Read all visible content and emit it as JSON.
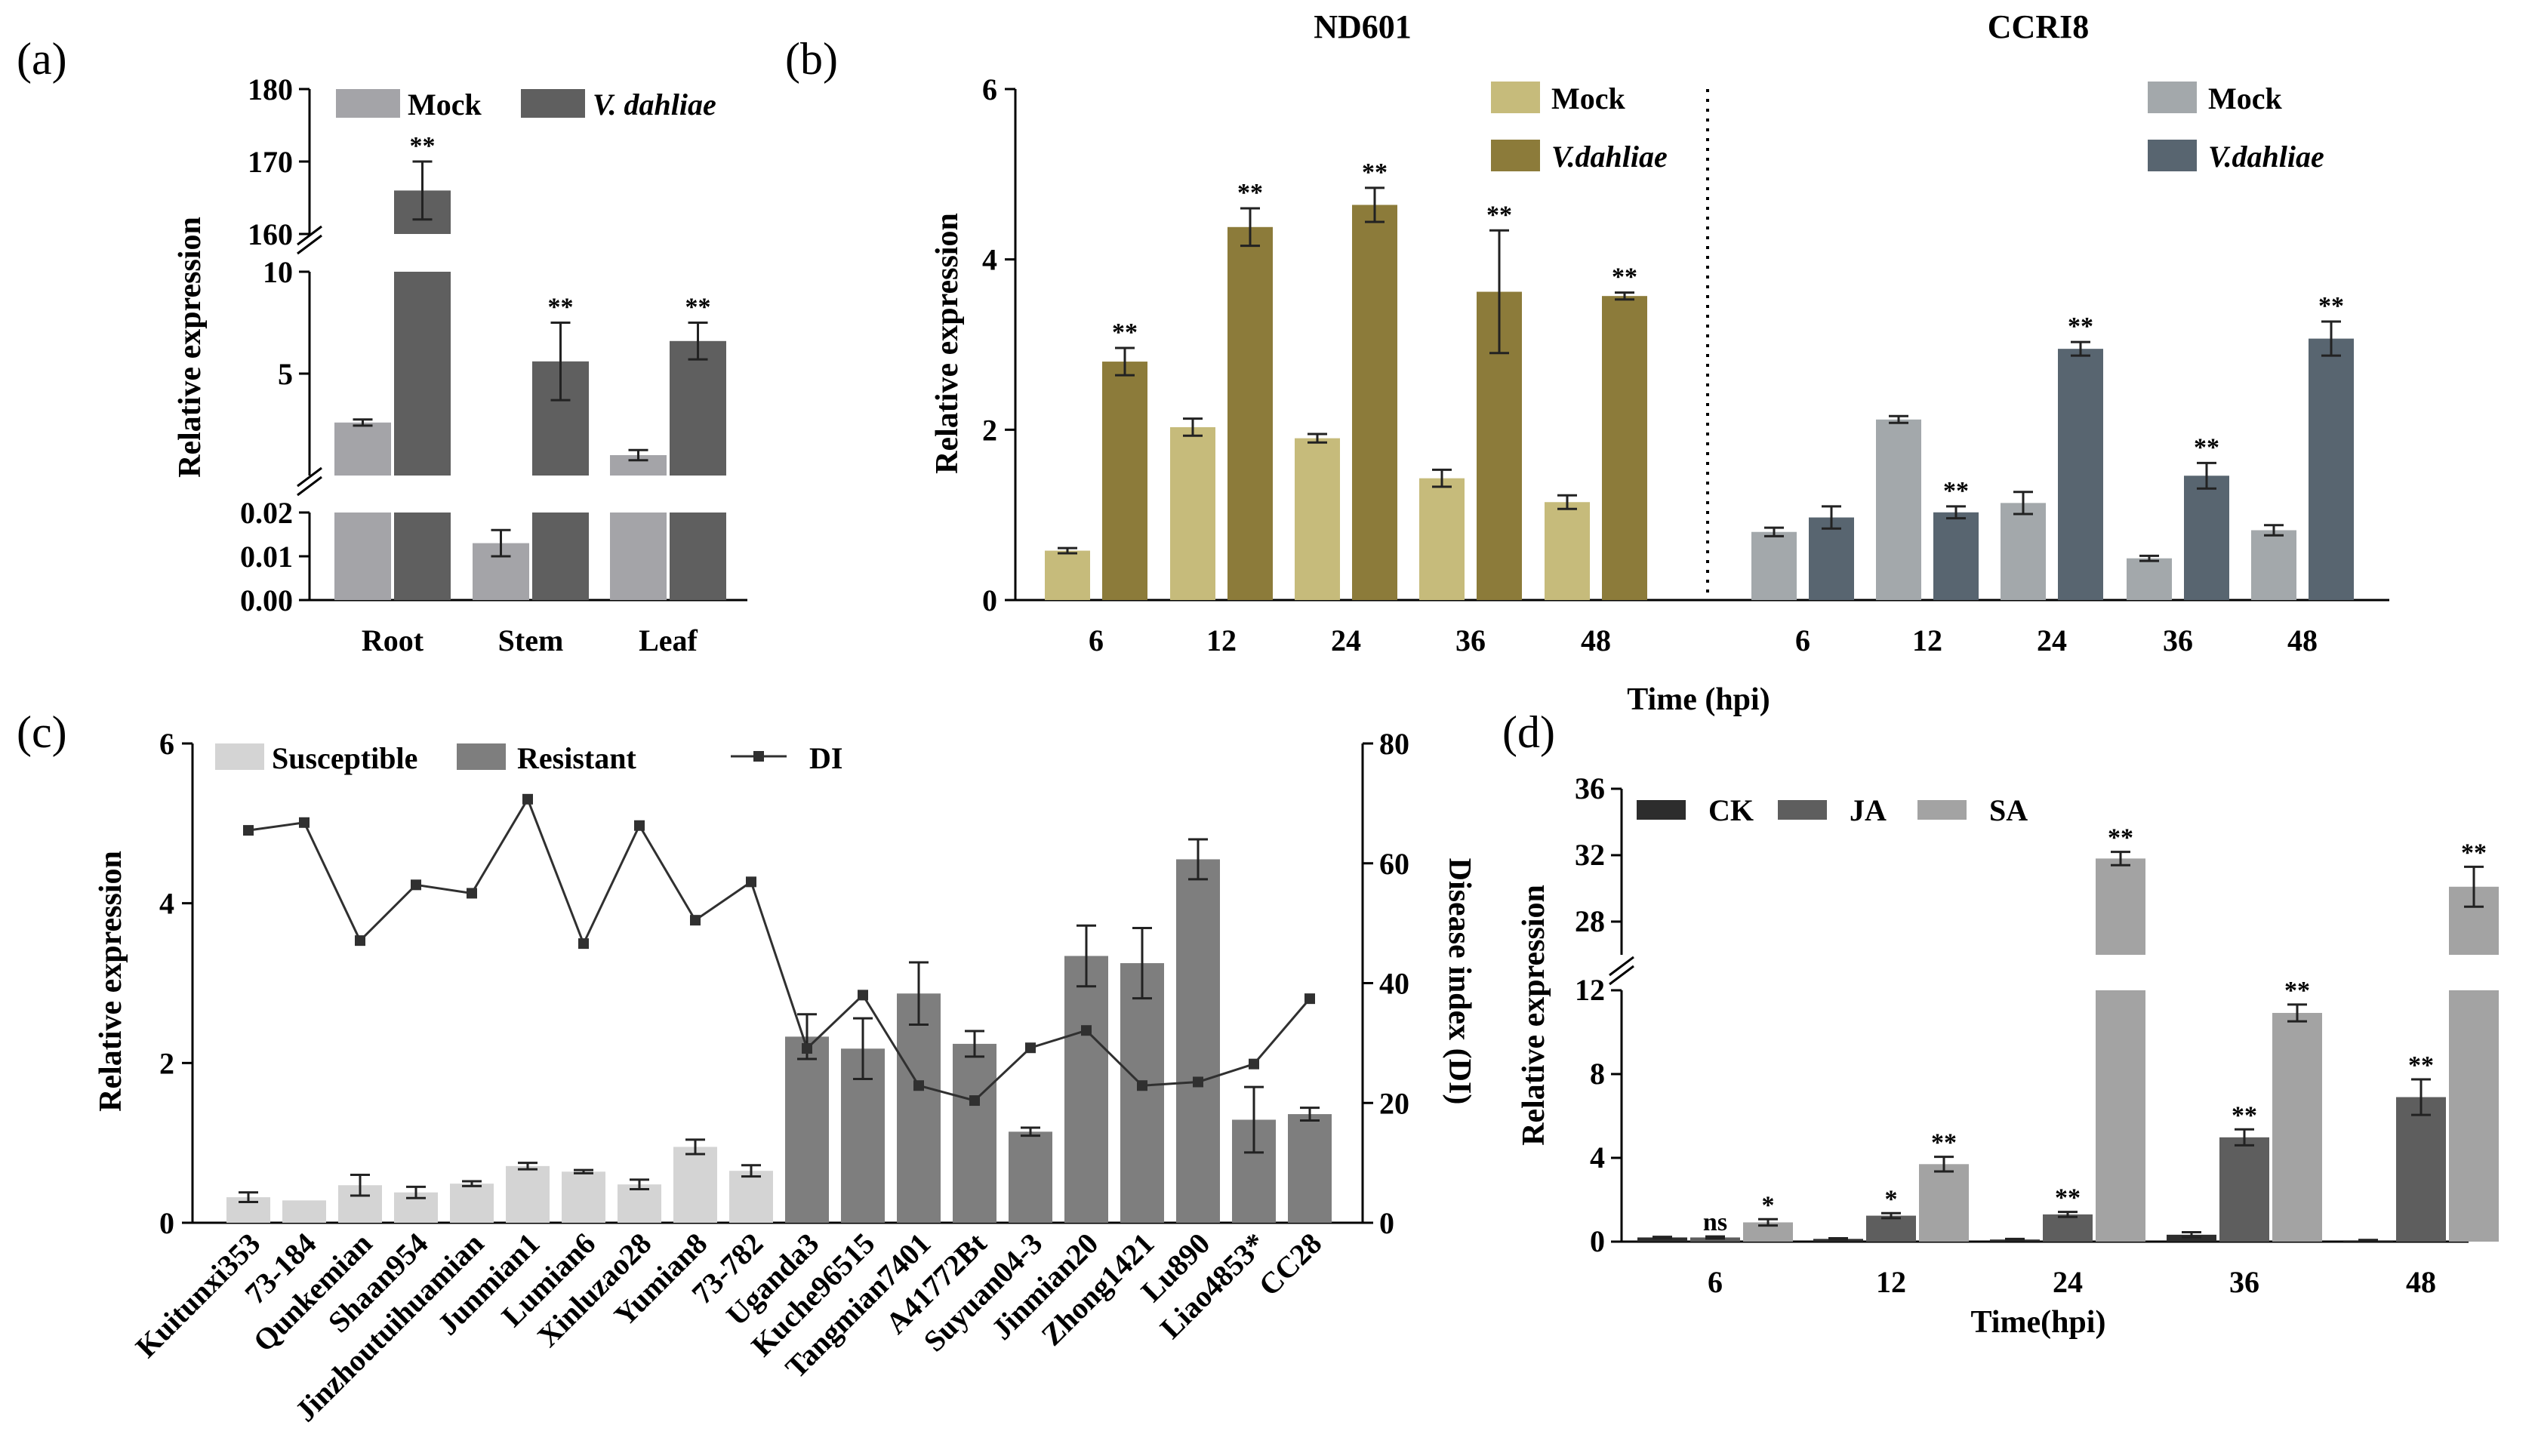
{
  "chart_data": [
    {
      "panel": "(a)",
      "type": "bar",
      "ylabel": "Relative expression",
      "categories": [
        "Root",
        "Stem",
        "Leaf"
      ],
      "y_segments": [
        {
          "range": [
            0,
            0.02
          ],
          "ticks": [
            "0.00",
            "0.01",
            "0.02"
          ]
        },
        {
          "range": [
            0,
            10
          ],
          "ticks": [
            "5",
            "10"
          ]
        },
        {
          "range": [
            160,
            180
          ],
          "ticks": [
            "160",
            "170",
            "180"
          ]
        }
      ],
      "legend": [
        {
          "name": "Mock",
          "italic": false
        },
        {
          "name": "V. dahliae",
          "italic": true
        }
      ],
      "colors": {
        "Mock": "#a4a4a8",
        "V. dahliae": "#5f5f5f"
      },
      "series": [
        {
          "name": "Mock",
          "values": [
            2.6,
            0.013,
            1.0
          ],
          "errors": [
            0.15,
            0.003,
            0.25
          ],
          "sig": [
            "",
            "",
            ""
          ]
        },
        {
          "name": "V. dahliae",
          "values": [
            166,
            5.6,
            6.6
          ],
          "errors": [
            4,
            1.9,
            0.9
          ],
          "sig": [
            "**",
            "**",
            "**"
          ]
        }
      ]
    },
    {
      "panel": "(b)",
      "type": "bar",
      "ylabel": "Relative expression",
      "xlabel": "Time (hpi)",
      "ylim": [
        0,
        6
      ],
      "yticks": [
        "0",
        "2",
        "4",
        "6"
      ],
      "groups": [
        {
          "title": "ND601",
          "categories": [
            "6",
            "12",
            "24",
            "36",
            "48"
          ],
          "legend": [
            "Mock",
            "V.dahliae"
          ],
          "colors": {
            "Mock": "#c6bb7b",
            "V.dahliae": "#8c7b3a"
          },
          "series": [
            {
              "name": "Mock",
              "values": [
                0.58,
                2.03,
                1.9,
                1.43,
                1.15
              ],
              "errors": [
                0.03,
                0.1,
                0.05,
                0.1,
                0.08
              ],
              "sig": [
                "",
                "",
                "",
                "",
                ""
              ]
            },
            {
              "name": "V.dahliae",
              "values": [
                2.8,
                4.38,
                4.64,
                3.62,
                3.57
              ],
              "errors": [
                0.16,
                0.22,
                0.2,
                0.72,
                0.04
              ],
              "sig": [
                "**",
                "**",
                "**",
                "**",
                "**"
              ]
            }
          ]
        },
        {
          "title": "CCRI8",
          "categories": [
            "6",
            "12",
            "24",
            "36",
            "48"
          ],
          "legend": [
            "Mock",
            "V.dahliae"
          ],
          "colors": {
            "Mock": "#a3a8ab",
            "V.dahliae": "#586570"
          },
          "series": [
            {
              "name": "Mock",
              "values": [
                0.8,
                2.12,
                1.14,
                0.49,
                0.82
              ],
              "errors": [
                0.05,
                0.04,
                0.13,
                0.03,
                0.06
              ],
              "sig": [
                "",
                "",
                "",
                "",
                ""
              ]
            },
            {
              "name": "V.dahliae",
              "values": [
                0.97,
                1.03,
                2.95,
                1.46,
                3.07
              ],
              "errors": [
                0.13,
                0.07,
                0.08,
                0.15,
                0.2
              ],
              "sig": [
                "",
                "**",
                "**",
                "**",
                "**"
              ]
            }
          ]
        }
      ]
    },
    {
      "panel": "(c)",
      "type": "bar+line",
      "ylabel": "Relative expression",
      "y2label": "Disease index (DI)",
      "ylim": [
        0,
        6
      ],
      "yticks": [
        "0",
        "2",
        "4",
        "6"
      ],
      "y2lim": [
        0,
        80
      ],
      "y2ticks": [
        "0",
        "20",
        "40",
        "60",
        "80"
      ],
      "legend": [
        "Susceptible",
        "Resistant",
        "DI"
      ],
      "colors": {
        "Susceptible": "#d4d4d4",
        "Resistant": "#7e7e7e",
        "DI": "#303030"
      },
      "categories": [
        "Kuitunxi353",
        "73-184",
        "Qunkemian",
        "Shaan954",
        "Jinzhoutuihuamian",
        "Junmian1",
        "Lumian6",
        "Xinluzao28",
        "Yumian8",
        "73-782",
        "Uganda3",
        "Kuche96515",
        "Tangmian7401",
        "A41772Bt",
        "Suyuan04-3",
        "Jinmian20",
        "Zhong1421",
        "Lu890",
        "Liao4853*",
        "CC28"
      ],
      "group": [
        "Susceptible",
        "Susceptible",
        "Susceptible",
        "Susceptible",
        "Susceptible",
        "Susceptible",
        "Susceptible",
        "Susceptible",
        "Susceptible",
        "Susceptible",
        "Resistant",
        "Resistant",
        "Resistant",
        "Resistant",
        "Resistant",
        "Resistant",
        "Resistant",
        "Resistant",
        "Resistant",
        "Resistant"
      ],
      "values": [
        0.32,
        0.28,
        0.47,
        0.38,
        0.49,
        0.71,
        0.64,
        0.48,
        0.95,
        0.65,
        2.33,
        2.18,
        2.87,
        2.24,
        1.14,
        3.34,
        3.25,
        4.55,
        1.29,
        1.36
      ],
      "errors": [
        0.06,
        0.0,
        0.13,
        0.07,
        0.03,
        0.04,
        0.02,
        0.06,
        0.09,
        0.07,
        0.28,
        0.38,
        0.39,
        0.16,
        0.05,
        0.38,
        0.44,
        0.25,
        0.41,
        0.08
      ],
      "di": [
        65.5,
        66.8,
        47.1,
        56.4,
        55.0,
        70.7,
        46.6,
        66.3,
        50.5,
        56.9,
        29.1,
        38.0,
        22.9,
        20.4,
        29.2,
        32.1,
        22.9,
        23.5,
        26.5,
        37.4
      ]
    },
    {
      "panel": "(d)",
      "type": "bar",
      "ylabel": "Relative expression",
      "xlabel": "Time(hpi)",
      "categories": [
        "6",
        "12",
        "24",
        "36",
        "48"
      ],
      "y_segments": [
        {
          "range": [
            0,
            12
          ],
          "ticks": [
            "0",
            "4",
            "8",
            "12"
          ]
        },
        {
          "range": [
            26,
            36
          ],
          "ticks": [
            "28",
            "32",
            "36"
          ]
        }
      ],
      "legend": [
        "CK",
        "JA",
        "SA"
      ],
      "colors": {
        "CK": "#2d2d2d",
        "JA": "#5e5e5e",
        "SA": "#a3a3a3"
      },
      "series": [
        {
          "name": "CK",
          "values": [
            0.2,
            0.13,
            0.1,
            0.33,
            0.06
          ],
          "errors": [
            0.03,
            0.03,
            0.03,
            0.12,
            0.02
          ],
          "sig": [
            "",
            "",
            "",
            "",
            ""
          ]
        },
        {
          "name": "JA",
          "values": [
            0.2,
            1.24,
            1.3,
            4.98,
            6.9
          ],
          "errors": [
            0.05,
            0.12,
            0.12,
            0.38,
            0.85
          ],
          "sig": [
            "ns",
            "*",
            "**",
            "**",
            "**"
          ]
        },
        {
          "name": "SA",
          "values": [
            0.92,
            3.7,
            31.8,
            10.92,
            30.1
          ],
          "errors": [
            0.15,
            0.35,
            0.4,
            0.4,
            1.2
          ],
          "sig": [
            "*",
            "**",
            "**",
            "**",
            "**"
          ]
        }
      ]
    }
  ]
}
